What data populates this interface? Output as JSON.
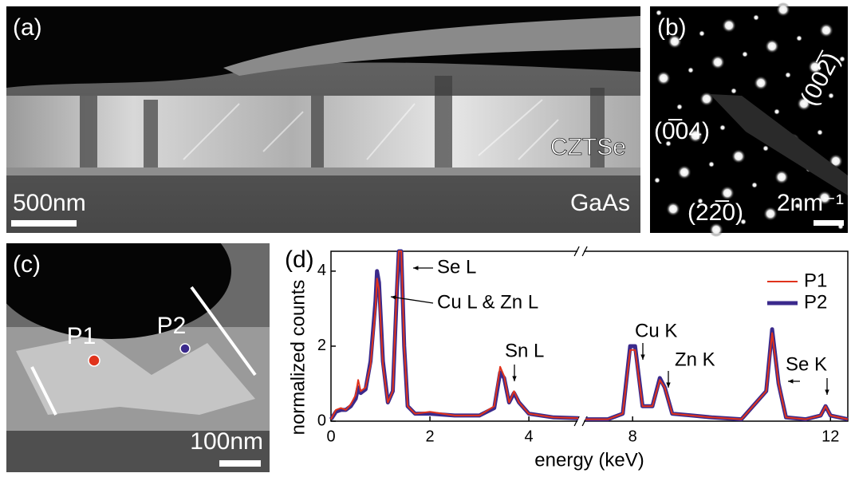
{
  "panels": {
    "a": {
      "label": "(a)",
      "layer_top": "CZTSe",
      "layer_bottom": "GaAs",
      "scale_bar": "500nm"
    },
    "b": {
      "label": "(b)",
      "spots": [
        "(002̅)",
        "(0̅04)",
        "(22̅0)"
      ],
      "scale_bar": "2nm⁻¹"
    },
    "c": {
      "label": "(c)",
      "points": [
        "P1",
        "P2"
      ],
      "scale_bar": "100nm"
    }
  },
  "chart_data": {
    "type": "line",
    "label": "(d)",
    "x_label": "energy (keV)",
    "y_label": "normalized counts",
    "x": [
      0,
      0.1,
      0.2,
      0.3,
      0.4,
      0.5,
      0.55,
      0.6,
      0.7,
      0.8,
      0.9,
      0.93,
      0.97,
      1.05,
      1.15,
      1.25,
      1.33,
      1.37,
      1.42,
      1.48,
      1.55,
      1.7,
      2.0,
      2.5,
      3.0,
      3.3,
      3.42,
      3.5,
      3.6,
      3.7,
      3.8,
      4.0,
      4.5,
      5,
      6,
      7.05,
      7.5,
      7.8,
      7.95,
      8.05,
      8.2,
      8.4,
      8.55,
      8.65,
      8.8,
      9.2,
      9.6,
      10.2,
      10.7,
      10.82,
      10.95,
      11.1,
      11.5,
      11.8,
      11.9,
      12.0,
      12.35
    ],
    "series": [
      {
        "name": "P1",
        "color": "#e0331c",
        "values": [
          0.05,
          0.3,
          0.35,
          0.3,
          0.45,
          0.7,
          1.1,
          0.8,
          0.9,
          1.5,
          3.0,
          3.8,
          3.5,
          1.5,
          0.5,
          0.8,
          3.5,
          4.53,
          4.53,
          2.0,
          0.4,
          0.2,
          0.25,
          0.15,
          0.15,
          0.4,
          1.45,
          1.2,
          0.5,
          0.8,
          0.5,
          0.2,
          0.1,
          0.08,
          null,
          0.05,
          0.05,
          0.2,
          1.9,
          1.9,
          0.4,
          0.4,
          1.1,
          0.9,
          0.2,
          0.15,
          0.1,
          0.05,
          0.8,
          2.35,
          1.0,
          0.1,
          0.05,
          0.15,
          0.4,
          0.15,
          0.05
        ]
      },
      {
        "name": "P2",
        "color": "#3b2a8c",
        "values": [
          0.05,
          0.25,
          0.3,
          0.3,
          0.4,
          0.6,
          0.9,
          0.75,
          0.85,
          1.6,
          3.2,
          4.0,
          3.7,
          1.6,
          0.5,
          0.8,
          3.4,
          4.53,
          4.53,
          2.0,
          0.4,
          0.2,
          0.2,
          0.15,
          0.15,
          0.35,
          1.3,
          1.15,
          0.5,
          0.75,
          0.5,
          0.2,
          0.1,
          0.08,
          null,
          0.05,
          0.05,
          0.2,
          2.0,
          2.0,
          0.4,
          0.4,
          1.15,
          0.9,
          0.2,
          0.15,
          0.1,
          0.05,
          0.8,
          2.45,
          1.0,
          0.1,
          0.05,
          0.15,
          0.4,
          0.15,
          0.05
        ]
      }
    ],
    "xlim": [
      0,
      12.35
    ],
    "xbreak": [
      5,
      7
    ],
    "xticks": [
      0,
      2,
      4,
      8,
      12
    ],
    "ylim": [
      0,
      4.53
    ],
    "yticks": [
      0,
      2,
      4
    ],
    "annotations": [
      "Se L",
      "Cu L & Zn L",
      "Sn L",
      "Cu K",
      "Zn K",
      "Se K"
    ],
    "legend": "upper right"
  }
}
